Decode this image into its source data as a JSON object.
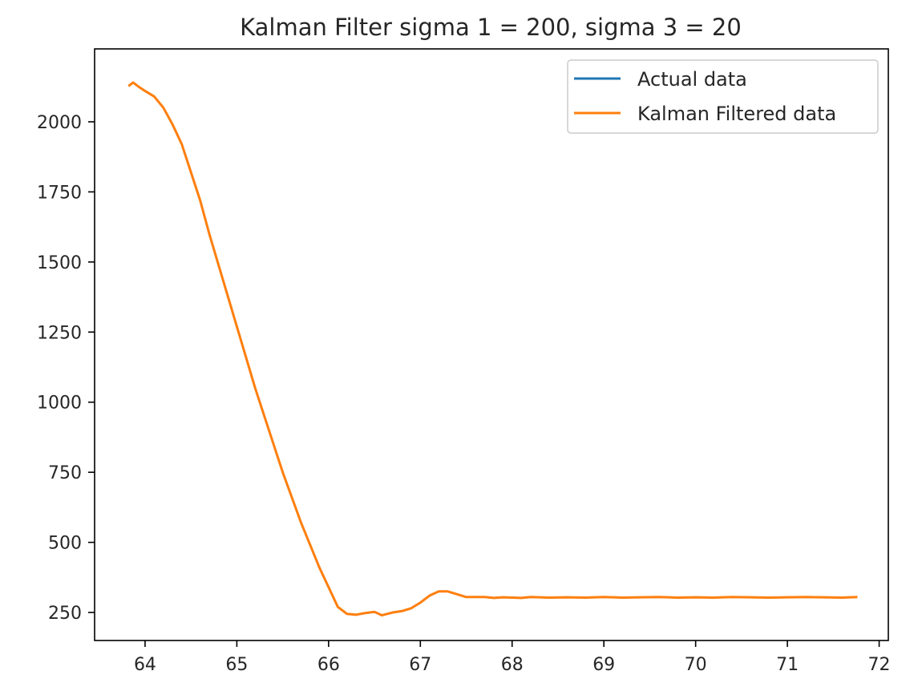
{
  "chart_data": {
    "type": "line",
    "title": "Kalman Filter sigma 1 = 200, sigma 3 = 20",
    "xlabel": "",
    "ylabel": "",
    "xlim": [
      63.45,
      72.1
    ],
    "ylim": [
      150,
      2260
    ],
    "xticks": [
      64,
      65,
      66,
      67,
      68,
      69,
      70,
      71,
      72
    ],
    "xtick_labels": [
      "64",
      "65",
      "66",
      "67",
      "68",
      "69",
      "70",
      "71",
      "72"
    ],
    "yticks": [
      250,
      500,
      750,
      1000,
      1250,
      1500,
      1750,
      2000
    ],
    "ytick_labels": [
      "250",
      "500",
      "750",
      "1000",
      "1250",
      "1500",
      "1750",
      "2000"
    ],
    "grid": false,
    "legend_position": "upper right",
    "series": [
      {
        "name": "Actual data",
        "color": "#1f77b4",
        "x": [
          63.83,
          63.87,
          63.93,
          64.0,
          64.1,
          64.2,
          64.3,
          64.4,
          64.5,
          64.6,
          64.7,
          64.8,
          64.9,
          65.0,
          65.1,
          65.2,
          65.3,
          65.4,
          65.5,
          65.6,
          65.7,
          65.8,
          65.9,
          66.0,
          66.1,
          66.2,
          66.3,
          66.4,
          66.5,
          66.58,
          66.7,
          66.8,
          66.9,
          67.0,
          67.1,
          67.2,
          67.3,
          67.4,
          67.5,
          67.6,
          67.7,
          67.8,
          67.9,
          68.0,
          68.1,
          68.2,
          68.4,
          68.6,
          68.8,
          69.0,
          69.2,
          69.4,
          69.6,
          69.8,
          70.0,
          70.2,
          70.4,
          70.6,
          70.8,
          71.0,
          71.2,
          71.4,
          71.6,
          71.75
        ],
        "y": [
          2130,
          2140,
          2125,
          2110,
          2090,
          2050,
          1990,
          1920,
          1820,
          1720,
          1600,
          1490,
          1380,
          1270,
          1160,
          1050,
          950,
          850,
          750,
          660,
          570,
          490,
          410,
          340,
          270,
          245,
          242,
          248,
          252,
          240,
          250,
          255,
          265,
          285,
          310,
          325,
          325,
          315,
          305,
          305,
          305,
          302,
          304,
          303,
          302,
          305,
          303,
          304,
          303,
          305,
          303,
          304,
          305,
          303,
          304,
          303,
          305,
          304,
          303,
          304,
          305,
          304,
          303,
          305
        ]
      },
      {
        "name": "Kalman Filtered data",
        "color": "#ff7f0e",
        "x": [
          63.83,
          63.87,
          63.93,
          64.0,
          64.1,
          64.2,
          64.3,
          64.4,
          64.5,
          64.6,
          64.7,
          64.8,
          64.9,
          65.0,
          65.1,
          65.2,
          65.3,
          65.4,
          65.5,
          65.6,
          65.7,
          65.8,
          65.9,
          66.0,
          66.1,
          66.2,
          66.3,
          66.4,
          66.5,
          66.58,
          66.7,
          66.8,
          66.9,
          67.0,
          67.1,
          67.2,
          67.3,
          67.4,
          67.5,
          67.6,
          67.7,
          67.8,
          67.9,
          68.0,
          68.1,
          68.2,
          68.4,
          68.6,
          68.8,
          69.0,
          69.2,
          69.4,
          69.6,
          69.8,
          70.0,
          70.2,
          70.4,
          70.6,
          70.8,
          71.0,
          71.2,
          71.4,
          71.6,
          71.75
        ],
        "y": [
          2130,
          2140,
          2125,
          2110,
          2090,
          2050,
          1990,
          1920,
          1820,
          1720,
          1600,
          1490,
          1380,
          1270,
          1160,
          1050,
          950,
          850,
          750,
          660,
          570,
          490,
          410,
          340,
          270,
          245,
          242,
          248,
          252,
          240,
          250,
          255,
          265,
          285,
          310,
          325,
          325,
          315,
          305,
          305,
          305,
          302,
          304,
          303,
          302,
          305,
          303,
          304,
          303,
          305,
          303,
          304,
          305,
          303,
          304,
          303,
          305,
          304,
          303,
          304,
          305,
          304,
          303,
          305
        ]
      }
    ]
  }
}
